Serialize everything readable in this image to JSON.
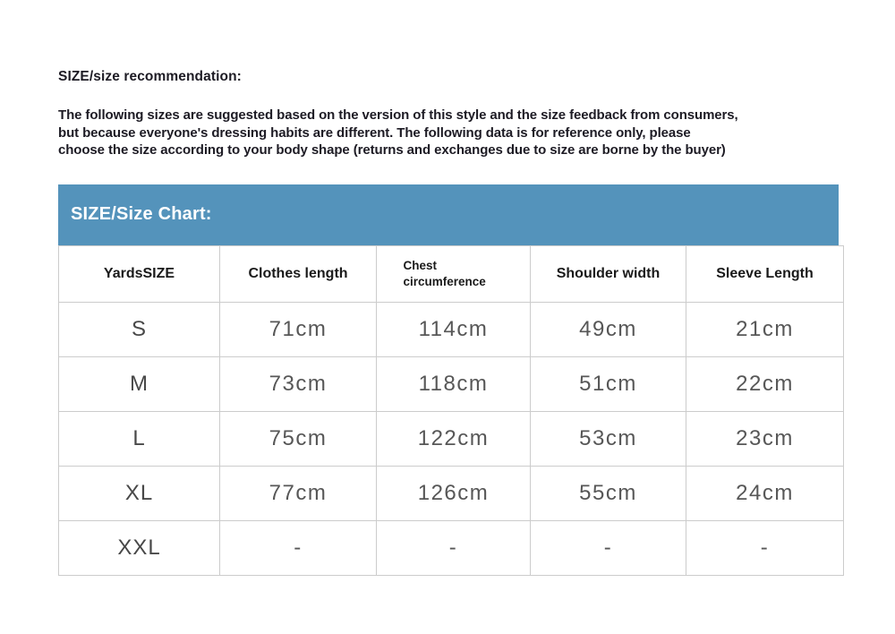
{
  "page": {
    "section_title": "SIZE/size recommendation:",
    "intro_lines": [
      "The following sizes are suggested based on the version of this style and the size feedback from consumers,",
      "but because everyone's dressing habits are different. The following data is for reference only, please",
      "choose the size according to your body shape (returns and exchanges due to size are borne by the buyer)"
    ]
  },
  "size_chart": {
    "header_title": "SIZE/Size Chart:",
    "columns": [
      "YardsSIZE",
      "Clothes length",
      "Chest circumference",
      "Shoulder width",
      "Sleeve Length"
    ],
    "rows": [
      [
        "S",
        "71cm",
        "114cm",
        "49cm",
        "21cm"
      ],
      [
        "M",
        "73cm",
        "118cm",
        "51cm",
        "22cm"
      ],
      [
        "L",
        "75cm",
        "122cm",
        "53cm",
        "23cm"
      ],
      [
        "XL",
        "77cm",
        "126cm",
        "55cm",
        "24cm"
      ],
      [
        "XXL",
        "-",
        "-",
        "-",
        "-"
      ]
    ]
  },
  "colors": {
    "accent_blue": "#5493BB",
    "table_border": "#cccccc",
    "cell_text": "#575757",
    "heading_text": "#1d1b24"
  }
}
